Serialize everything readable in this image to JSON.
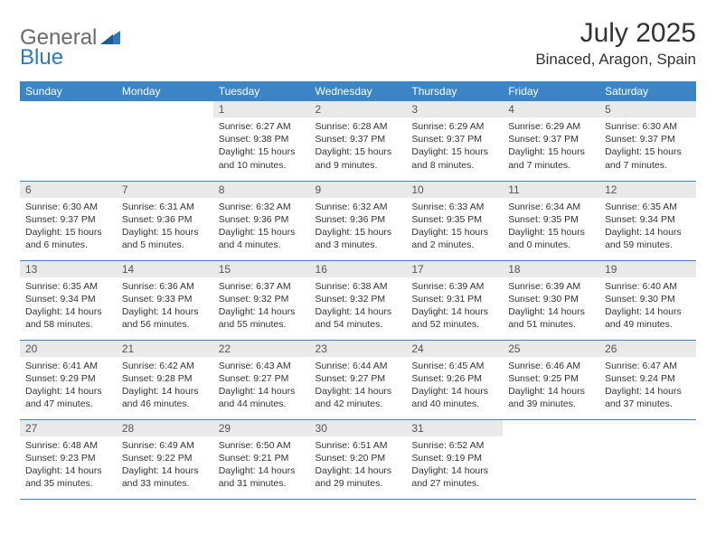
{
  "logo": {
    "text1": "General",
    "text2": "Blue"
  },
  "title": "July 2025",
  "location": "Binaced, Aragon, Spain",
  "colors": {
    "header_bg": "#3b85c6",
    "header_text": "#ffffff",
    "daynum_bg": "#e9e9e9",
    "row_border": "#3b85c6",
    "logo_gray": "#6a6a6a",
    "logo_blue": "#2f78bd",
    "body_text": "#333333",
    "background": "#ffffff"
  },
  "weekdays": [
    "Sunday",
    "Monday",
    "Tuesday",
    "Wednesday",
    "Thursday",
    "Friday",
    "Saturday"
  ],
  "weeks": [
    [
      null,
      null,
      {
        "n": "1",
        "sunrise": "6:27 AM",
        "sunset": "9:38 PM",
        "daylight": "15 hours and 10 minutes."
      },
      {
        "n": "2",
        "sunrise": "6:28 AM",
        "sunset": "9:37 PM",
        "daylight": "15 hours and 9 minutes."
      },
      {
        "n": "3",
        "sunrise": "6:29 AM",
        "sunset": "9:37 PM",
        "daylight": "15 hours and 8 minutes."
      },
      {
        "n": "4",
        "sunrise": "6:29 AM",
        "sunset": "9:37 PM",
        "daylight": "15 hours and 7 minutes."
      },
      {
        "n": "5",
        "sunrise": "6:30 AM",
        "sunset": "9:37 PM",
        "daylight": "15 hours and 7 minutes."
      }
    ],
    [
      {
        "n": "6",
        "sunrise": "6:30 AM",
        "sunset": "9:37 PM",
        "daylight": "15 hours and 6 minutes."
      },
      {
        "n": "7",
        "sunrise": "6:31 AM",
        "sunset": "9:36 PM",
        "daylight": "15 hours and 5 minutes."
      },
      {
        "n": "8",
        "sunrise": "6:32 AM",
        "sunset": "9:36 PM",
        "daylight": "15 hours and 4 minutes."
      },
      {
        "n": "9",
        "sunrise": "6:32 AM",
        "sunset": "9:36 PM",
        "daylight": "15 hours and 3 minutes."
      },
      {
        "n": "10",
        "sunrise": "6:33 AM",
        "sunset": "9:35 PM",
        "daylight": "15 hours and 2 minutes."
      },
      {
        "n": "11",
        "sunrise": "6:34 AM",
        "sunset": "9:35 PM",
        "daylight": "15 hours and 0 minutes."
      },
      {
        "n": "12",
        "sunrise": "6:35 AM",
        "sunset": "9:34 PM",
        "daylight": "14 hours and 59 minutes."
      }
    ],
    [
      {
        "n": "13",
        "sunrise": "6:35 AM",
        "sunset": "9:34 PM",
        "daylight": "14 hours and 58 minutes."
      },
      {
        "n": "14",
        "sunrise": "6:36 AM",
        "sunset": "9:33 PM",
        "daylight": "14 hours and 56 minutes."
      },
      {
        "n": "15",
        "sunrise": "6:37 AM",
        "sunset": "9:32 PM",
        "daylight": "14 hours and 55 minutes."
      },
      {
        "n": "16",
        "sunrise": "6:38 AM",
        "sunset": "9:32 PM",
        "daylight": "14 hours and 54 minutes."
      },
      {
        "n": "17",
        "sunrise": "6:39 AM",
        "sunset": "9:31 PM",
        "daylight": "14 hours and 52 minutes."
      },
      {
        "n": "18",
        "sunrise": "6:39 AM",
        "sunset": "9:30 PM",
        "daylight": "14 hours and 51 minutes."
      },
      {
        "n": "19",
        "sunrise": "6:40 AM",
        "sunset": "9:30 PM",
        "daylight": "14 hours and 49 minutes."
      }
    ],
    [
      {
        "n": "20",
        "sunrise": "6:41 AM",
        "sunset": "9:29 PM",
        "daylight": "14 hours and 47 minutes."
      },
      {
        "n": "21",
        "sunrise": "6:42 AM",
        "sunset": "9:28 PM",
        "daylight": "14 hours and 46 minutes."
      },
      {
        "n": "22",
        "sunrise": "6:43 AM",
        "sunset": "9:27 PM",
        "daylight": "14 hours and 44 minutes."
      },
      {
        "n": "23",
        "sunrise": "6:44 AM",
        "sunset": "9:27 PM",
        "daylight": "14 hours and 42 minutes."
      },
      {
        "n": "24",
        "sunrise": "6:45 AM",
        "sunset": "9:26 PM",
        "daylight": "14 hours and 40 minutes."
      },
      {
        "n": "25",
        "sunrise": "6:46 AM",
        "sunset": "9:25 PM",
        "daylight": "14 hours and 39 minutes."
      },
      {
        "n": "26",
        "sunrise": "6:47 AM",
        "sunset": "9:24 PM",
        "daylight": "14 hours and 37 minutes."
      }
    ],
    [
      {
        "n": "27",
        "sunrise": "6:48 AM",
        "sunset": "9:23 PM",
        "daylight": "14 hours and 35 minutes."
      },
      {
        "n": "28",
        "sunrise": "6:49 AM",
        "sunset": "9:22 PM",
        "daylight": "14 hours and 33 minutes."
      },
      {
        "n": "29",
        "sunrise": "6:50 AM",
        "sunset": "9:21 PM",
        "daylight": "14 hours and 31 minutes."
      },
      {
        "n": "30",
        "sunrise": "6:51 AM",
        "sunset": "9:20 PM",
        "daylight": "14 hours and 29 minutes."
      },
      {
        "n": "31",
        "sunrise": "6:52 AM",
        "sunset": "9:19 PM",
        "daylight": "14 hours and 27 minutes."
      },
      null,
      null
    ]
  ],
  "labels": {
    "sunrise": "Sunrise:",
    "sunset": "Sunset:",
    "daylight": "Daylight:"
  }
}
